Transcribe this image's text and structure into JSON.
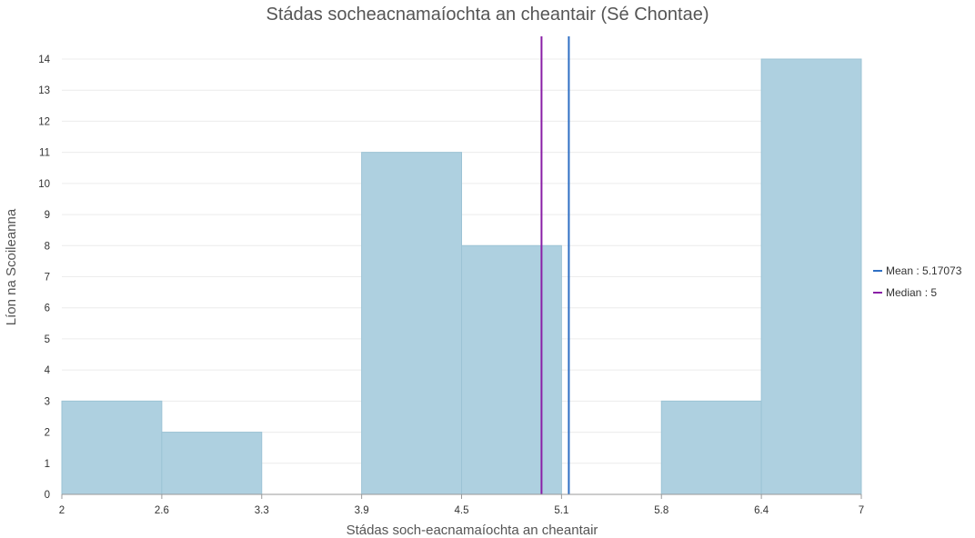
{
  "chart_data": {
    "type": "bar",
    "title": "Stádas socheacnamaíochta an cheantair (Sé Chontae)",
    "xlabel": "Stádas soch-eacnamaíochta an cheantair",
    "ylabel": "Líon na Scoileanna",
    "xlim": [
      2,
      7
    ],
    "ylim": [
      0,
      14
    ],
    "x_ticks": [
      "2",
      "2.6",
      "3.3",
      "3.9",
      "4.5",
      "5.1",
      "5.8",
      "6.4",
      "7"
    ],
    "y_ticks": [
      "0",
      "1",
      "2",
      "3",
      "4",
      "5",
      "6",
      "7",
      "8",
      "9",
      "10",
      "11",
      "12",
      "13",
      "14"
    ],
    "bins": [
      {
        "start": 2.0,
        "end": 2.625,
        "count": 3
      },
      {
        "start": 2.625,
        "end": 3.25,
        "count": 2
      },
      {
        "start": 3.25,
        "end": 3.875,
        "count": 0
      },
      {
        "start": 3.875,
        "end": 4.5,
        "count": 11
      },
      {
        "start": 4.5,
        "end": 5.125,
        "count": 8
      },
      {
        "start": 5.125,
        "end": 5.75,
        "count": 0
      },
      {
        "start": 5.75,
        "end": 6.375,
        "count": 3
      },
      {
        "start": 6.375,
        "end": 7.0,
        "count": 14
      }
    ],
    "reference_lines": [
      {
        "label": "Mean : 5.17073",
        "value": 5.17073,
        "color": "#2f6fc4"
      },
      {
        "label": "Median : 5",
        "value": 5,
        "color": "#8a1fa6"
      }
    ],
    "bar_fill": "#aed0e0",
    "bar_stroke": "#9cc3d5",
    "grid": true,
    "legend_position": "right"
  }
}
